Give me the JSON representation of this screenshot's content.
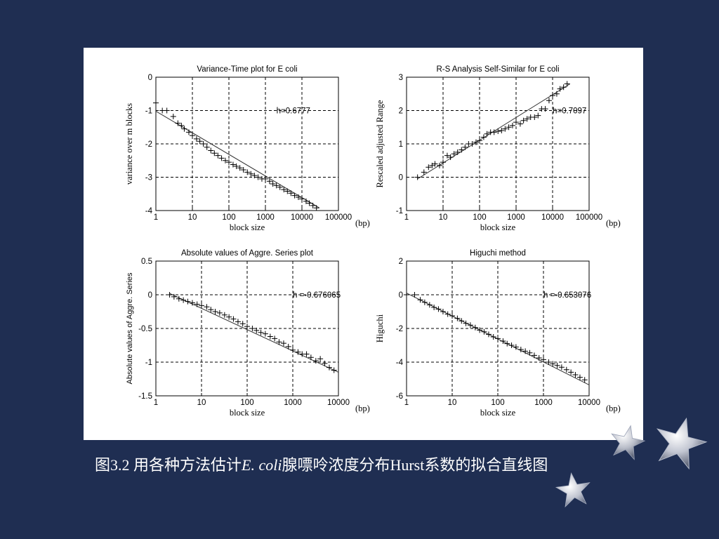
{
  "colors": {
    "background": "#1f2e52",
    "panel": "#ffffff",
    "ink": "#000000",
    "grid": "#000000",
    "caption": "#ffffff"
  },
  "caption": {
    "prefix": "图3.2  用各种方法估计",
    "species": "E. coli",
    "suffix": "腺嘌呤浓度分布Hurst系数的拟合直线图"
  },
  "decorations": {
    "stars": [
      "star-icon",
      "star-icon",
      "star-icon"
    ]
  },
  "chart_data": [
    {
      "type": "scatter",
      "title": "Variance-Time plot for E coli",
      "xlabel": "block size",
      "ylabel": "variance over m blocks",
      "unit_label": "(bp)",
      "x_scale": "log",
      "xlim": [
        1,
        100000
      ],
      "ylim": [
        -4,
        0
      ],
      "x_ticks": [
        1,
        10,
        100,
        1000,
        10000,
        100000
      ],
      "x_tick_labels": [
        "1",
        "10",
        "100",
        "1000",
        "10000",
        "100000"
      ],
      "y_ticks": [
        -4,
        -3,
        -2,
        -1,
        0
      ],
      "y_tick_labels": [
        "-4",
        "-3",
        "-2",
        "-1",
        "0"
      ],
      "grid": true,
      "annotation": {
        "text": "h=0.6777",
        "x": 2000,
        "y": -1
      },
      "fit_line": {
        "x": [
          1,
          30000
        ],
        "y": [
          -1.02,
          -3.92
        ]
      },
      "series": [
        {
          "marker": "+",
          "x": [
            1,
            1.5,
            2,
            3,
            4,
            5,
            6,
            8,
            10,
            13,
            16,
            20,
            25,
            32,
            40,
            50,
            63,
            80,
            100,
            130,
            160,
            200,
            250,
            320,
            400,
            500,
            630,
            800,
            1000,
            1300,
            1600,
            2000,
            2500,
            3200,
            4000,
            5000,
            6300,
            8000,
            10000,
            13000,
            16000,
            20000,
            25000
          ],
          "y": [
            -0.77,
            -1.0,
            -1.0,
            -1.18,
            -1.38,
            -1.45,
            -1.55,
            -1.65,
            -1.75,
            -1.85,
            -1.92,
            -2.0,
            -2.1,
            -2.2,
            -2.28,
            -2.35,
            -2.43,
            -2.5,
            -2.55,
            -2.62,
            -2.67,
            -2.72,
            -2.78,
            -2.85,
            -2.9,
            -2.95,
            -3.0,
            -3.05,
            -3.05,
            -3.12,
            -3.2,
            -3.25,
            -3.3,
            -3.37,
            -3.42,
            -3.48,
            -3.55,
            -3.6,
            -3.65,
            -3.72,
            -3.78,
            -3.85,
            -3.92
          ]
        }
      ]
    },
    {
      "type": "scatter",
      "title": "R-S Analysis Self-Similar for E coli",
      "xlabel": "block size",
      "ylabel": "Rescaled adjusted Range",
      "unit_label": "(bp)",
      "x_scale": "log",
      "xlim": [
        1,
        100000
      ],
      "ylim": [
        -1,
        3
      ],
      "x_ticks": [
        1,
        10,
        100,
        1000,
        10000,
        100000
      ],
      "x_tick_labels": [
        "1",
        "10",
        "100",
        "1000",
        "10000",
        "100000"
      ],
      "y_ticks": [
        -1,
        0,
        1,
        2,
        3
      ],
      "y_tick_labels": [
        "-1",
        "0",
        "1",
        "2",
        "3"
      ],
      "grid": true,
      "annotation": {
        "text": "h=0.7097",
        "x": 10000,
        "y": 2
      },
      "fit_line": {
        "x": [
          2,
          30000
        ],
        "y": [
          -0.05,
          2.8
        ]
      },
      "series": [
        {
          "marker": "+",
          "x": [
            2,
            3,
            4,
            5,
            6,
            8,
            10,
            13,
            16,
            20,
            25,
            32,
            40,
            50,
            63,
            80,
            100,
            130,
            160,
            200,
            250,
            320,
            400,
            500,
            630,
            800,
            1000,
            1300,
            1600,
            2000,
            2500,
            3200,
            4000,
            5000,
            6300,
            8000,
            10000,
            13000,
            16000,
            20000,
            25000
          ],
          "y": [
            0.0,
            0.15,
            0.3,
            0.35,
            0.4,
            0.35,
            0.45,
            0.65,
            0.6,
            0.7,
            0.75,
            0.82,
            0.9,
            1.0,
            1.0,
            1.05,
            1.1,
            1.2,
            1.3,
            1.35,
            1.35,
            1.38,
            1.4,
            1.45,
            1.5,
            1.55,
            1.65,
            1.6,
            1.7,
            1.75,
            1.8,
            1.8,
            1.85,
            2.05,
            2.05,
            2.3,
            2.45,
            2.5,
            2.65,
            2.7,
            2.8
          ]
        }
      ]
    },
    {
      "type": "scatter",
      "title": "Absolute values of Aggre. Series plot",
      "xlabel": "block size",
      "ylabel": "Absolute values of Aggre. Series",
      "unit_label": "(bp)",
      "x_scale": "log",
      "xlim": [
        1,
        10000
      ],
      "ylim": [
        -1.5,
        0.5
      ],
      "x_ticks": [
        1,
        10,
        100,
        1000,
        10000
      ],
      "x_tick_labels": [
        "1",
        "10",
        "100",
        "1000",
        "10000"
      ],
      "y_ticks": [
        -1.5,
        -1,
        -0.5,
        0,
        0.5
      ],
      "y_tick_labels": [
        "-1.5",
        "-1",
        "-0.5",
        "0",
        "0.5"
      ],
      "grid": true,
      "annotation": {
        "text": "h =-0.676065",
        "x": 1000,
        "y": 0
      },
      "fit_line": {
        "x": [
          2,
          10000
        ],
        "y": [
          0.02,
          -1.15
        ]
      },
      "series": [
        {
          "marker": "+",
          "x": [
            2,
            2.5,
            3.2,
            4,
            5,
            6.3,
            8,
            10,
            13,
            16,
            20,
            25,
            32,
            40,
            50,
            63,
            80,
            100,
            130,
            160,
            200,
            250,
            320,
            400,
            500,
            630,
            800,
            1000,
            1300,
            1600,
            2000,
            2500,
            3200,
            4000,
            5000,
            6300,
            8000
          ],
          "y": [
            0.0,
            -0.03,
            -0.06,
            -0.08,
            -0.1,
            -0.12,
            -0.14,
            -0.16,
            -0.18,
            -0.22,
            -0.25,
            -0.27,
            -0.3,
            -0.33,
            -0.36,
            -0.4,
            -0.43,
            -0.47,
            -0.5,
            -0.53,
            -0.56,
            -0.58,
            -0.62,
            -0.65,
            -0.7,
            -0.72,
            -0.77,
            -0.82,
            -0.85,
            -0.88,
            -0.88,
            -0.93,
            -0.98,
            -0.95,
            -1.02,
            -1.08,
            -1.12
          ]
        }
      ]
    },
    {
      "type": "scatter",
      "title": "Higuchi method",
      "xlabel": "block size",
      "ylabel": "Higuchi",
      "unit_label": "(bp)",
      "x_scale": "log",
      "xlim": [
        1,
        10000
      ],
      "ylim": [
        -6,
        2
      ],
      "x_ticks": [
        1,
        10,
        100,
        1000,
        10000
      ],
      "x_tick_labels": [
        "1",
        "10",
        "100",
        "1000",
        "10000"
      ],
      "y_ticks": [
        -6,
        -4,
        -2,
        0,
        2
      ],
      "y_tick_labels": [
        "-6",
        "-4",
        "-2",
        "0",
        "2"
      ],
      "grid": true,
      "annotation": {
        "text": "h =-0.653076",
        "x": 1000,
        "y": 0
      },
      "fit_line": {
        "x": [
          1,
          10000
        ],
        "y": [
          0.1,
          -5.35
        ]
      },
      "series": [
        {
          "marker": "+",
          "x": [
            1,
            1.5,
            2,
            2.5,
            3.2,
            4,
            5,
            6.3,
            8,
            10,
            13,
            16,
            20,
            25,
            32,
            40,
            50,
            63,
            80,
            100,
            130,
            160,
            200,
            250,
            320,
            400,
            500,
            630,
            800,
            1000,
            1300,
            1600,
            2000,
            2500,
            3200,
            4000,
            5000,
            6300,
            8000
          ],
          "y": [
            0.0,
            0.0,
            -0.3,
            -0.45,
            -0.6,
            -0.75,
            -0.85,
            -1.0,
            -1.15,
            -1.25,
            -1.4,
            -1.55,
            -1.7,
            -1.8,
            -1.95,
            -2.1,
            -2.2,
            -2.35,
            -2.5,
            -2.6,
            -2.75,
            -2.9,
            -3.0,
            -3.1,
            -3.25,
            -3.35,
            -3.45,
            -3.6,
            -3.75,
            -3.85,
            -4.0,
            -4.1,
            -4.2,
            -4.3,
            -4.45,
            -4.6,
            -4.75,
            -4.9,
            -5.05
          ]
        }
      ]
    }
  ]
}
